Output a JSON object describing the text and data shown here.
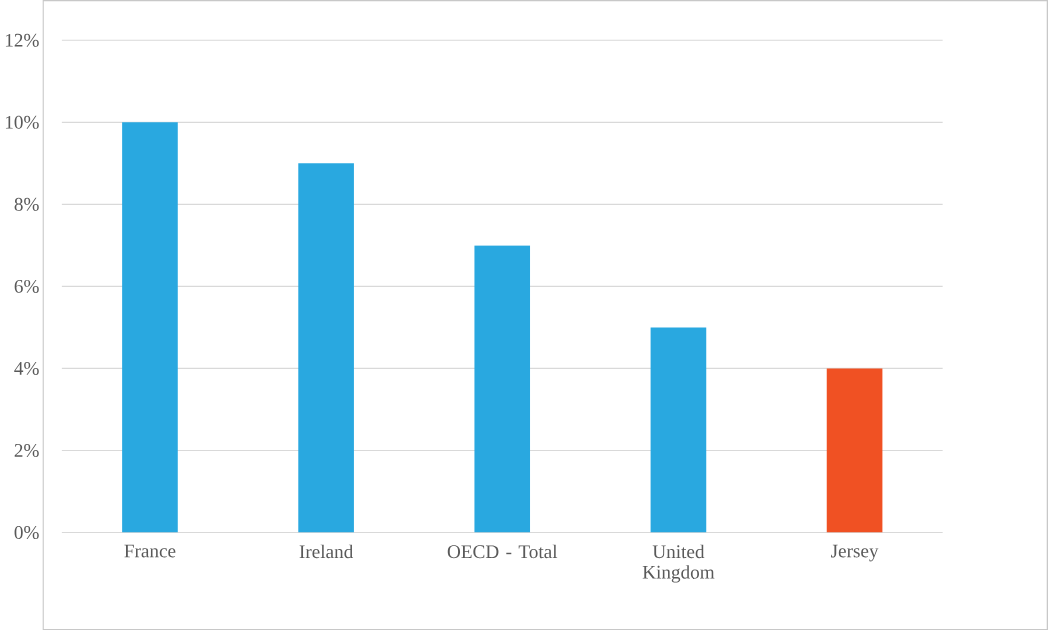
{
  "chart_data": {
    "type": "bar",
    "categories": [
      "France",
      "Ireland",
      "OECD - Total",
      "United Kingdom",
      "Jersey"
    ],
    "values": [
      10,
      9,
      7,
      5,
      4
    ],
    "colors": [
      "#29a8e0",
      "#29a8e0",
      "#29a8e0",
      "#29a8e0",
      "#f05123"
    ],
    "ylim": [
      0,
      12
    ],
    "yticks": [
      {
        "value": 0,
        "label": "0%"
      },
      {
        "value": 2,
        "label": "2%"
      },
      {
        "value": 4,
        "label": "4%"
      },
      {
        "value": 6,
        "label": "6%"
      },
      {
        "value": 8,
        "label": "8%"
      },
      {
        "value": 10,
        "label": "10%"
      },
      {
        "value": 12,
        "label": "12%"
      }
    ],
    "grid": "y"
  }
}
